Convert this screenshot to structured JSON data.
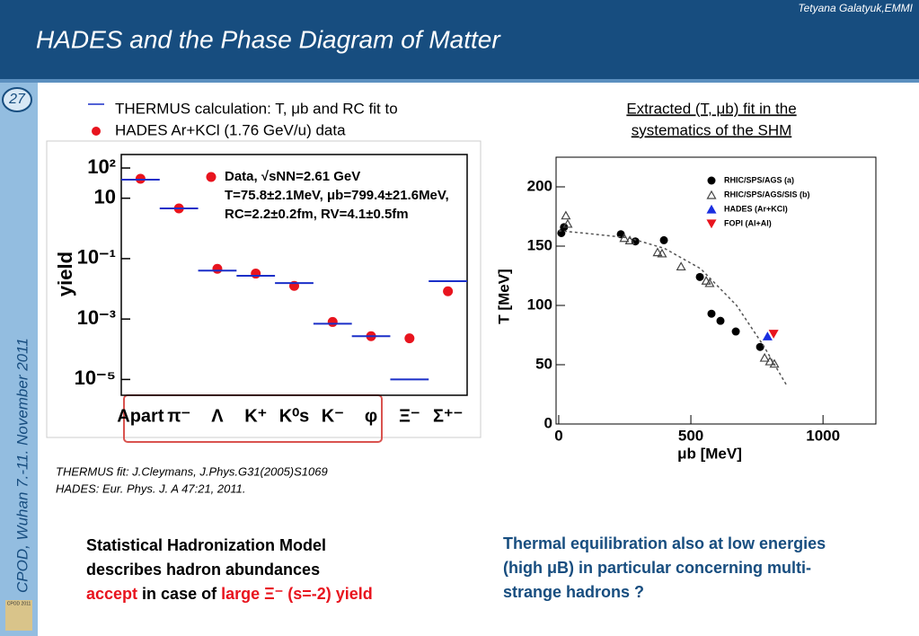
{
  "author": "Tetyana Galatyuk,EMMI",
  "title": "HADES and the Phase Diagram of Matter",
  "slide_number": "27",
  "sidebar": "CPOD, Wuhan 7.-11. November 2011",
  "logo": "CPOD 2011",
  "legend_top": [
    "THERMUS calculation: T, μb and RC fit to",
    "HADES Ar+KCl (1.76 GeV/u) data"
  ],
  "right_heading": [
    "Extracted (T, μb) fit in the",
    "systematics of the SHM"
  ],
  "references": [
    "THERMUS fit: J.Cleymans, J.Phys.G31(2005)S1069",
    "HADES: Eur. Phys. J. A 47:21, 2011."
  ],
  "conclusion_left": {
    "lines": [
      "Statistical Hadronization Model",
      "describes hadron abundances"
    ],
    "last_line": [
      "accept",
      " in case of ",
      "large Ξ⁻ (s=-2) yield"
    ]
  },
  "conclusion_right": [
    "Thermal equilibration also at low energies",
    "(high μB) in particular concerning multi-",
    "strange hadrons ?"
  ],
  "chart_data": [
    {
      "type": "dot",
      "y_label": "yield",
      "log_y": true,
      "annotations": [
        "Data, √sNN=2.61 GeV",
        "T=75.8±2.1MeV, μb=799.4±21.6MeV,",
        "RC=2.2±0.2fm, RV=4.1±0.5fm"
      ],
      "categories": [
        "Apart",
        "π⁻",
        "Λ",
        "K⁺",
        "K⁰s",
        "K⁻",
        "φ",
        "Ξ⁻",
        "Σ⁺⁻"
      ],
      "series": [
        {
          "name": "Data",
          "color": "#e8141e",
          "marker": "circle",
          "values": [
            44,
            4.6,
            0.046,
            0.032,
            0.0125,
            0.0008,
            0.00027,
            0.00023,
            0.0083
          ]
        },
        {
          "name": "THERMUS calculation",
          "color": "#1a2fc8",
          "marker": "segment",
          "values": [
            41,
            4.6,
            0.04,
            0.027,
            0.0155,
            0.0007,
            0.00027,
            1e-05,
            0.018
          ]
        }
      ],
      "ylim": [
        3e-06,
        280
      ],
      "yticks": [
        {
          "value": 100,
          "label": "10²"
        },
        10,
        {
          "value": 0.1,
          "label": "10⁻¹"
        },
        {
          "value": 0.001,
          "label": "10⁻³"
        },
        {
          "value": 1e-05,
          "label": "10⁻⁵"
        }
      ]
    },
    {
      "type": "scatter",
      "x_label": "μb [MeV]",
      "y_label": "T [MeV]",
      "xlim": [
        -10,
        1200
      ],
      "ylim": [
        0,
        225
      ],
      "xticks": [
        0,
        500,
        1000
      ],
      "yticks": [
        0,
        50,
        100,
        150,
        200
      ],
      "series": [
        {
          "name": "RHIC/SPS/AGS (a)",
          "color": "#000000",
          "marker": "circle",
          "x": [
            10,
            20,
            235,
            290,
            398,
            534,
            578,
            612,
            670,
            762
          ],
          "values": [
            161,
            166,
            160,
            154,
            155,
            124,
            93,
            87,
            78,
            65
          ]
        },
        {
          "name": "RHIC/SPS/AGS/SIS (b)",
          "color": "#444444",
          "marker": "open-triangle",
          "x": [
            27,
            34,
            248,
            269,
            374,
            391,
            463,
            558,
            571,
            779,
            799,
            816
          ],
          "values": [
            176,
            169,
            157,
            155,
            145,
            144,
            133,
            121,
            119,
            56,
            53,
            51
          ]
        },
        {
          "name": "HADES (Ar+KCl)",
          "color": "#1a2fe0",
          "marker": "triangle",
          "x": [
            790
          ],
          "values": [
            74
          ]
        },
        {
          "name": "FOPI (Al+Al)",
          "color": "#e8141e",
          "marker": "down-triangle",
          "x": [
            813
          ],
          "values": [
            76
          ]
        },
        {
          "color": "#555555",
          "marker": "dashed-line",
          "x": [
            0,
            95,
            265,
            401,
            537,
            673,
            775,
            864
          ],
          "values": [
            163,
            161,
            157,
            148,
            131,
            100,
            66,
            32
          ]
        }
      ]
    }
  ]
}
